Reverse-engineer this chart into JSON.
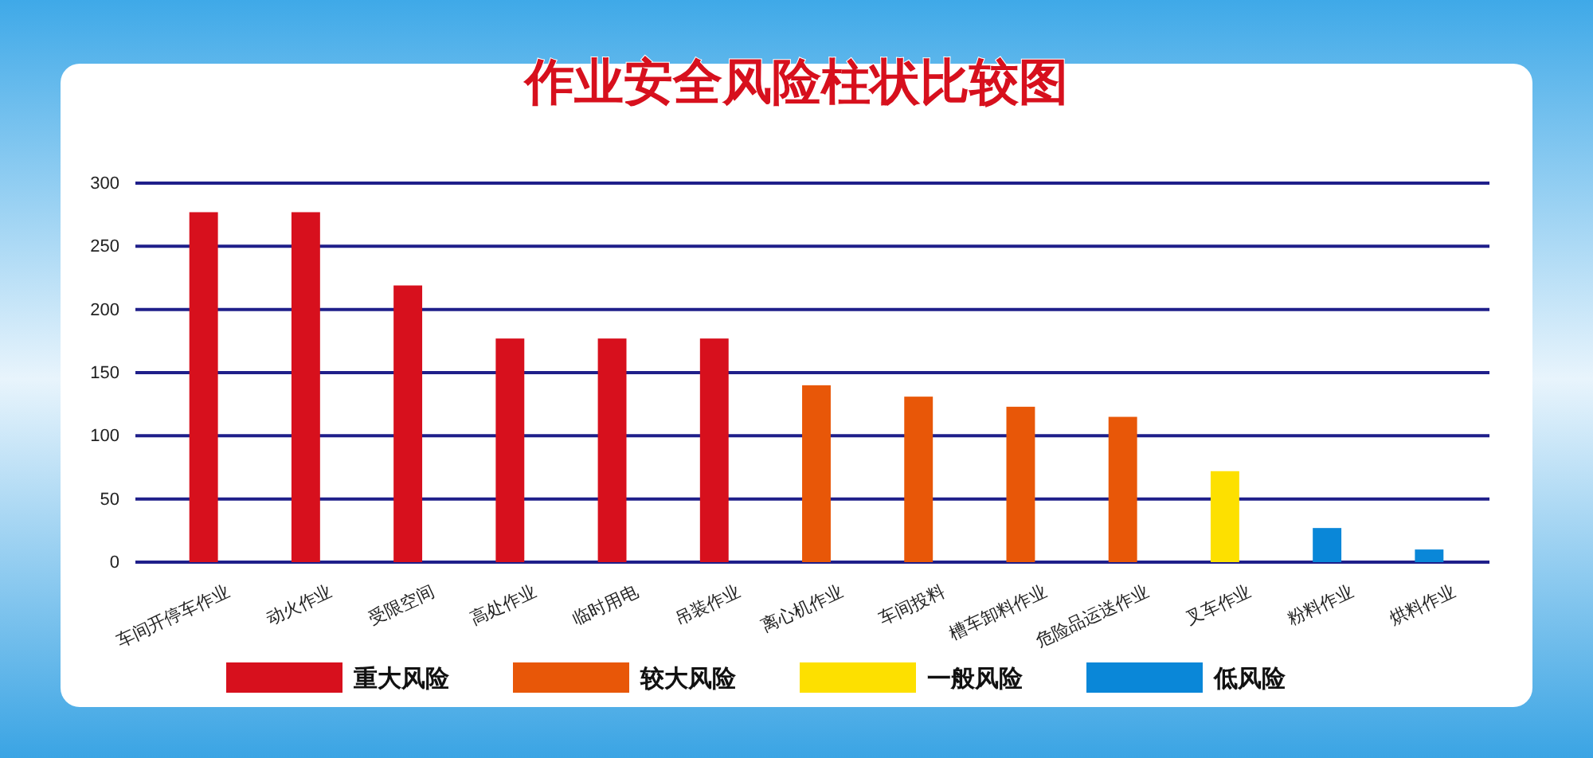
{
  "chart_data": {
    "type": "bar",
    "title": "作业安全风险柱状比较图",
    "categories": [
      "车间开停车作业",
      "动火作业",
      "受限空间",
      "高处作业",
      "临时用电",
      "吊装作业",
      "离心机作业",
      "车间投料",
      "槽车卸料作业",
      "危险品运送作业",
      "叉车作业",
      "粉料作业",
      "烘料作业"
    ],
    "series": [
      {
        "name": "重大风险",
        "color": "#d7101d",
        "values": [
          277,
          277,
          219,
          177,
          177,
          177,
          null,
          null,
          null,
          null,
          null,
          null,
          null
        ]
      },
      {
        "name": "较大风险",
        "color": "#e85708",
        "values": [
          null,
          null,
          null,
          null,
          null,
          null,
          140,
          131,
          123,
          115,
          null,
          null,
          null
        ]
      },
      {
        "name": "一般风险",
        "color": "#fde000",
        "values": [
          null,
          null,
          null,
          null,
          null,
          null,
          null,
          null,
          null,
          null,
          72,
          null,
          null
        ]
      },
      {
        "name": "低风险",
        "color": "#0a87d8",
        "values": [
          null,
          null,
          null,
          null,
          null,
          null,
          null,
          null,
          null,
          null,
          null,
          27,
          10
        ]
      }
    ],
    "ylim": [
      0,
      300
    ],
    "yticks": [
      0,
      50,
      100,
      150,
      200,
      250,
      300
    ],
    "grid": "y",
    "legend": "bottom"
  }
}
